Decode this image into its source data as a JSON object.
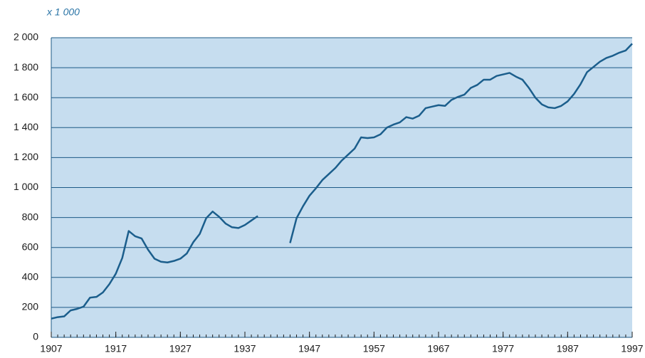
{
  "chart_data": {
    "type": "line",
    "subtitle": "x 1 000",
    "x": [
      1907,
      1908,
      1909,
      1910,
      1911,
      1912,
      1913,
      1914,
      1915,
      1916,
      1917,
      1918,
      1919,
      1920,
      1921,
      1922,
      1923,
      1924,
      1925,
      1926,
      1927,
      1928,
      1929,
      1930,
      1931,
      1932,
      1933,
      1934,
      1935,
      1936,
      1937,
      1938,
      1939,
      1940,
      1941,
      1942,
      1943,
      1944,
      1945,
      1946,
      1947,
      1948,
      1949,
      1950,
      1951,
      1952,
      1953,
      1954,
      1955,
      1956,
      1957,
      1958,
      1959,
      1960,
      1961,
      1962,
      1963,
      1964,
      1965,
      1966,
      1967,
      1968,
      1969,
      1970,
      1971,
      1972,
      1973,
      1974,
      1975,
      1976,
      1977,
      1978,
      1979,
      1980,
      1981,
      1982,
      1983,
      1984,
      1985,
      1986,
      1987,
      1988,
      1989,
      1990,
      1991,
      1992,
      1993,
      1994,
      1995,
      1996,
      1997
    ],
    "series": [
      {
        "color": "#1b5e8c",
        "values": [
          125,
          135,
          140,
          180,
          190,
          205,
          265,
          270,
          300,
          355,
          425,
          530,
          710,
          675,
          660,
          585,
          525,
          505,
          500,
          510,
          525,
          560,
          635,
          690,
          795,
          840,
          805,
          760,
          735,
          730,
          750,
          780,
          810,
          null,
          null,
          null,
          null,
          630,
          795,
          875,
          945,
          995,
          1050,
          1090,
          1130,
          1180,
          1220,
          1260,
          1335,
          1330,
          1335,
          1355,
          1400,
          1420,
          1435,
          1470,
          1460,
          1480,
          1530,
          1540,
          1550,
          1545,
          1585,
          1605,
          1620,
          1665,
          1685,
          1720,
          1720,
          1745,
          1755,
          1765,
          1740,
          1720,
          1665,
          1600,
          1555,
          1535,
          1530,
          1545,
          1575,
          1625,
          1690,
          1770,
          1805,
          1840,
          1865,
          1880,
          1900,
          1915,
          1960
        ]
      }
    ],
    "xlim": [
      1907,
      1997
    ],
    "xticks": [
      1907,
      1917,
      1927,
      1937,
      1947,
      1957,
      1967,
      1977,
      1987,
      1997
    ],
    "ylim": [
      0,
      2000
    ],
    "yticks": [
      0,
      200,
      400,
      600,
      800,
      {
        "value": 1000,
        "label": "1 000"
      },
      {
        "value": 1200,
        "label": "1 200"
      },
      {
        "value": 1400,
        "label": "1 400"
      },
      {
        "value": 1600,
        "label": "1 600"
      },
      {
        "value": 1800,
        "label": "1 800"
      },
      {
        "value": 2000,
        "label": "2 000"
      }
    ],
    "grid": true,
    "plot_background": "#c6ddef",
    "grid_color": "#1d5a86"
  }
}
